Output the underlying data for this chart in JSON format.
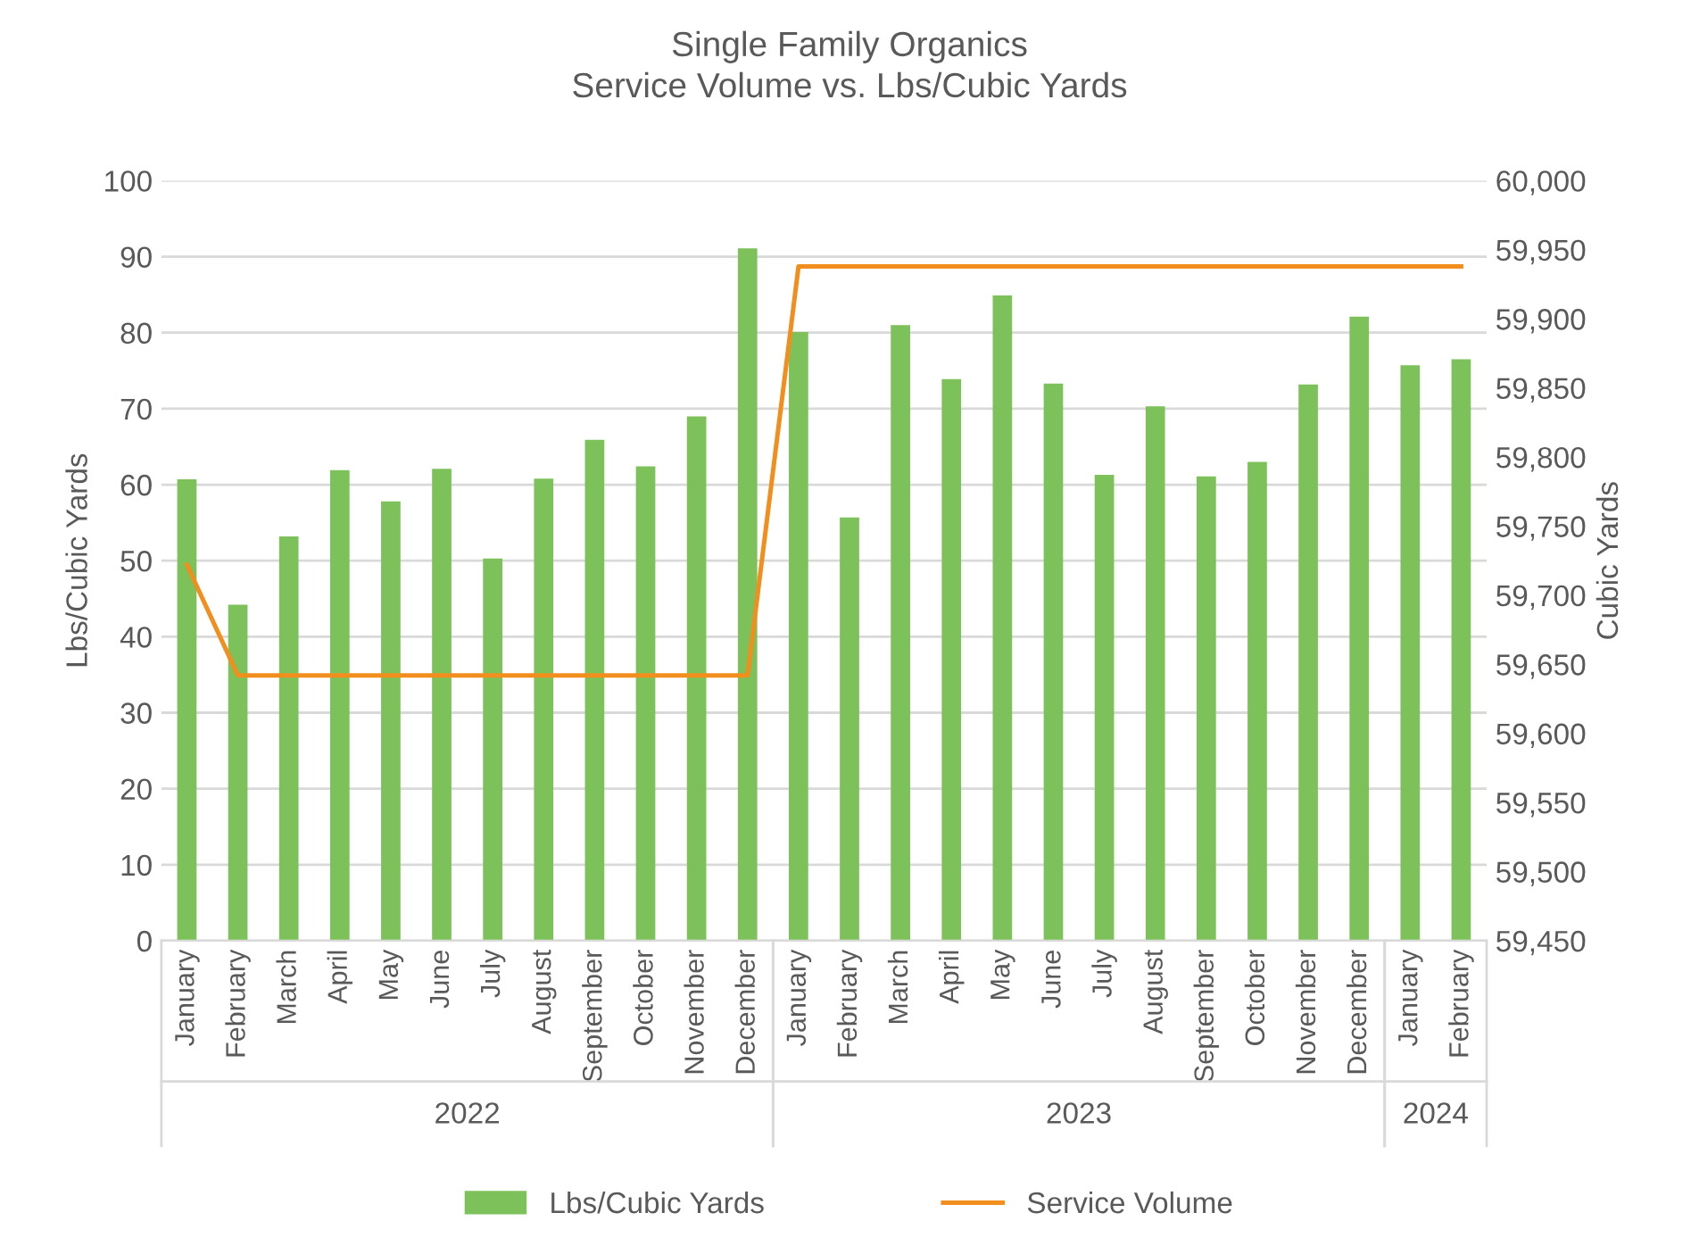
{
  "chart_data": {
    "type": "bar",
    "title": "Single Family Organics",
    "subtitle": "Service Volume vs. Lbs/Cubic Yards",
    "ylabel": "Lbs/Cubic Yards",
    "y2label": "Cubic Yards",
    "categories": [
      "January",
      "February",
      "March",
      "April",
      "May",
      "June",
      "July",
      "August",
      "September",
      "October",
      "November",
      "December",
      "January",
      "February",
      "March",
      "April",
      "May",
      "June",
      "July",
      "August",
      "September",
      "October",
      "November",
      "December",
      "January",
      "February"
    ],
    "series": [
      {
        "name": "Lbs/Cubic Yards",
        "color": "#7dc15a",
        "values": [
          60.7,
          44.2,
          53.2,
          61.9,
          57.8,
          62.1,
          50.3,
          60.8,
          65.9,
          62.4,
          69,
          91.1,
          80.1,
          55.7,
          81,
          73.9,
          84.9,
          73.3,
          61.3,
          70.3,
          61.1,
          63,
          73.2,
          82.1,
          75.7,
          76.5
        ]
      },
      {
        "name": "Service Volume",
        "type": "line",
        "axis": "y2",
        "color": "#f28e1e",
        "values": [
          59722,
          59642,
          59642,
          59642,
          59642,
          59642,
          59642,
          59642,
          59642,
          59642,
          59642,
          59642,
          59938,
          59938,
          59938,
          59938,
          59938,
          59938,
          59938,
          59938,
          59938,
          59938,
          59938,
          59938,
          59938,
          59938
        ]
      }
    ],
    "annotations": [
      "2022",
      "2023",
      "2024"
    ],
    "ylim": [
      0,
      100
    ],
    "yticks": [
      0,
      10,
      20,
      30,
      40,
      50,
      60,
      70,
      80,
      90,
      100
    ],
    "y2lim": [
      59450,
      60000
    ],
    "y2ticks": [
      {
        "value": 59450,
        "label": "59,450"
      },
      {
        "value": 59500,
        "label": "59,500"
      },
      {
        "value": 59550,
        "label": "59,550"
      },
      {
        "value": 59600,
        "label": "59,600"
      },
      {
        "value": 59650,
        "label": "59,650"
      },
      {
        "value": 59700,
        "label": "59,700"
      },
      {
        "value": 59750,
        "label": "59,750"
      },
      {
        "value": 59800,
        "label": "59,800"
      },
      {
        "value": 59850,
        "label": "59,850"
      },
      {
        "value": 59900,
        "label": "59,900"
      },
      {
        "value": 59950,
        "label": "59,950"
      },
      {
        "value": 60000,
        "label": "60,000"
      }
    ],
    "grid": "y",
    "legend": "bottom"
  }
}
